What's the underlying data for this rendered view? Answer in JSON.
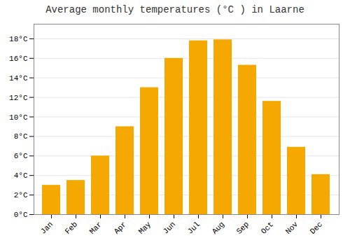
{
  "chart_data": {
    "type": "bar",
    "title": "Average monthly temperatures (°C ) in Laarne",
    "categories": [
      "Jan",
      "Feb",
      "Mar",
      "Apr",
      "May",
      "Jun",
      "Jul",
      "Aug",
      "Sep",
      "Oct",
      "Nov",
      "Dec"
    ],
    "values": [
      3.0,
      3.5,
      6.0,
      9.0,
      13.0,
      16.0,
      17.8,
      17.9,
      15.3,
      11.6,
      6.9,
      4.1
    ],
    "color": "#F5A800",
    "ylim": [
      0,
      19.5
    ],
    "yticks": [
      {
        "value": 0,
        "label": "0°C"
      },
      {
        "value": 2,
        "label": "2°C"
      },
      {
        "value": 4,
        "label": "4°C"
      },
      {
        "value": 6,
        "label": "6°C"
      },
      {
        "value": 8,
        "label": "8°C"
      },
      {
        "value": 10,
        "label": "10°C"
      },
      {
        "value": 12,
        "label": "12°C"
      },
      {
        "value": 14,
        "label": "14°C"
      },
      {
        "value": 16,
        "label": "16°C"
      },
      {
        "value": 18,
        "label": "18°C"
      }
    ],
    "grid": true
  }
}
